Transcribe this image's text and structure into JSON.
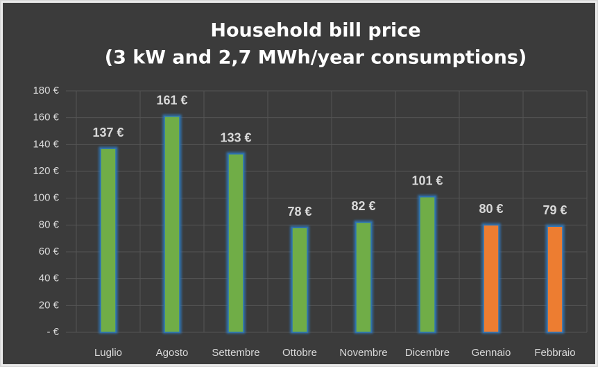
{
  "chart_data": {
    "type": "bar",
    "title": "Household bill price",
    "subtitle": "(3 kW and 2,7 MWh/year consumptions)",
    "categories": [
      "Luglio",
      "Agosto",
      "Settembre",
      "Ottobre",
      "Novembre",
      "Dicembre",
      "Gennaio",
      "Febbraio"
    ],
    "values": [
      137,
      161,
      133,
      78,
      82,
      101,
      80,
      79
    ],
    "value_labels": [
      "137 €",
      "161 €",
      "133 €",
      "78 €",
      "82 €",
      "101 €",
      "80 €",
      "79 €"
    ],
    "colors": [
      "#70ad47",
      "#70ad47",
      "#70ad47",
      "#70ad47",
      "#70ad47",
      "#70ad47",
      "#ed7d31",
      "#ed7d31"
    ],
    "ylim": [
      0,
      180
    ],
    "yticks": [
      {
        "value": 0,
        "label": "-  €"
      },
      {
        "value": 20,
        "label": "20 €"
      },
      {
        "value": 40,
        "label": "40 €"
      },
      {
        "value": 60,
        "label": "60 €"
      },
      {
        "value": 80,
        "label": "80 €"
      },
      {
        "value": 100,
        "label": "100 €"
      },
      {
        "value": 120,
        "label": "120 €"
      },
      {
        "value": 140,
        "label": "140 €"
      },
      {
        "value": 160,
        "label": "160 €"
      },
      {
        "value": 180,
        "label": "180 €"
      }
    ],
    "grid": true
  }
}
